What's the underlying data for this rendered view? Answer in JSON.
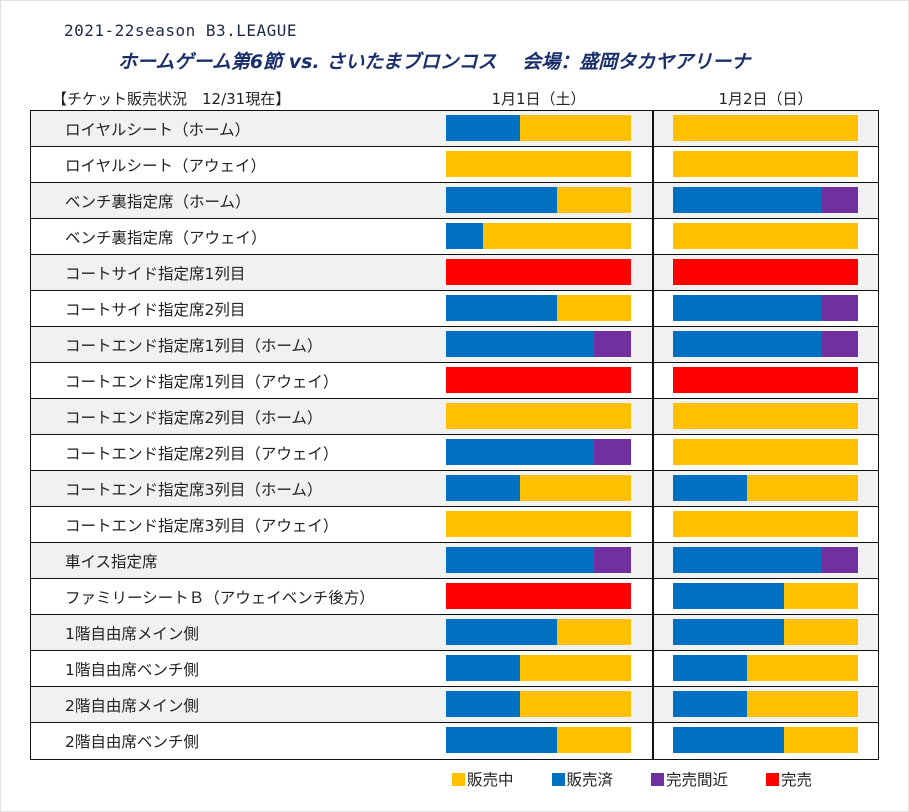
{
  "header": {
    "season": "2021-22season B3.LEAGUE",
    "title": "ホームゲーム第6節 vs. さいたまブロンコス　 会場：盛岡タカヤアリーナ",
    "status_heading": "【チケット販売状況　12/31現在】"
  },
  "chart_data": {
    "type": "table",
    "title": "チケット販売状況 12/31現在",
    "unit": "fraction of bar (0-1), stacked left to right",
    "days": [
      "1月1日（土）",
      "1月2日（日）"
    ],
    "status_colors": {
      "on_sale": "#FFC000",
      "sold": "#0070C0",
      "nearly_sold_out": "#7030A0",
      "sold_out": "#FF0000"
    },
    "legend": [
      {
        "key": "on_sale",
        "label": "販売中"
      },
      {
        "key": "sold",
        "label": "販売済"
      },
      {
        "key": "nearly_sold_out",
        "label": "完売間近"
      },
      {
        "key": "sold_out",
        "label": "完売"
      }
    ],
    "rows": [
      {
        "seat": "ロイヤルシート（ホーム）",
        "day1": [
          {
            "s": "sold",
            "v": 0.4
          },
          {
            "s": "on_sale",
            "v": 0.6
          }
        ],
        "day2": [
          {
            "s": "on_sale",
            "v": 1.0
          }
        ]
      },
      {
        "seat": "ロイヤルシート（アウェイ）",
        "day1": [
          {
            "s": "on_sale",
            "v": 1.0
          }
        ],
        "day2": [
          {
            "s": "on_sale",
            "v": 1.0
          }
        ]
      },
      {
        "seat": "ベンチ裏指定席（ホーム）",
        "day1": [
          {
            "s": "sold",
            "v": 0.6
          },
          {
            "s": "on_sale",
            "v": 0.4
          }
        ],
        "day2": [
          {
            "s": "sold",
            "v": 0.8
          },
          {
            "s": "nearly_sold_out",
            "v": 0.2
          }
        ]
      },
      {
        "seat": "ベンチ裏指定席（アウェイ）",
        "day1": [
          {
            "s": "sold",
            "v": 0.2
          },
          {
            "s": "on_sale",
            "v": 0.8
          }
        ],
        "day2": [
          {
            "s": "on_sale",
            "v": 1.0
          }
        ]
      },
      {
        "seat": "コートサイド指定席1列目",
        "day1": [
          {
            "s": "sold_out",
            "v": 1.0
          }
        ],
        "day2": [
          {
            "s": "sold_out",
            "v": 1.0
          }
        ]
      },
      {
        "seat": "コートサイド指定席2列目",
        "day1": [
          {
            "s": "sold",
            "v": 0.6
          },
          {
            "s": "on_sale",
            "v": 0.4
          }
        ],
        "day2": [
          {
            "s": "sold",
            "v": 0.8
          },
          {
            "s": "nearly_sold_out",
            "v": 0.2
          }
        ]
      },
      {
        "seat": "コートエンド指定席1列目（ホーム）",
        "day1": [
          {
            "s": "sold",
            "v": 0.8
          },
          {
            "s": "nearly_sold_out",
            "v": 0.2
          }
        ],
        "day2": [
          {
            "s": "sold",
            "v": 0.8
          },
          {
            "s": "nearly_sold_out",
            "v": 0.2
          }
        ]
      },
      {
        "seat": "コートエンド指定席1列目（アウェイ）",
        "day1": [
          {
            "s": "sold_out",
            "v": 1.0
          }
        ],
        "day2": [
          {
            "s": "sold_out",
            "v": 1.0
          }
        ]
      },
      {
        "seat": "コートエンド指定席2列目（ホーム）",
        "day1": [
          {
            "s": "on_sale",
            "v": 1.0
          }
        ],
        "day2": [
          {
            "s": "on_sale",
            "v": 1.0
          }
        ]
      },
      {
        "seat": "コートエンド指定席2列目（アウェイ）",
        "day1": [
          {
            "s": "sold",
            "v": 0.8
          },
          {
            "s": "nearly_sold_out",
            "v": 0.2
          }
        ],
        "day2": [
          {
            "s": "on_sale",
            "v": 1.0
          }
        ]
      },
      {
        "seat": "コートエンド指定席3列目（ホーム）",
        "day1": [
          {
            "s": "sold",
            "v": 0.4
          },
          {
            "s": "on_sale",
            "v": 0.6
          }
        ],
        "day2": [
          {
            "s": "sold",
            "v": 0.4
          },
          {
            "s": "on_sale",
            "v": 0.6
          }
        ]
      },
      {
        "seat": "コートエンド指定席3列目（アウェイ）",
        "day1": [
          {
            "s": "on_sale",
            "v": 1.0
          }
        ],
        "day2": [
          {
            "s": "on_sale",
            "v": 1.0
          }
        ]
      },
      {
        "seat": "車イス指定席",
        "day1": [
          {
            "s": "sold",
            "v": 0.8
          },
          {
            "s": "nearly_sold_out",
            "v": 0.2
          }
        ],
        "day2": [
          {
            "s": "sold",
            "v": 0.8
          },
          {
            "s": "nearly_sold_out",
            "v": 0.2
          }
        ]
      },
      {
        "seat": "ファミリーシートＢ（アウェイベンチ後方）",
        "day1": [
          {
            "s": "sold_out",
            "v": 1.0
          }
        ],
        "day2": [
          {
            "s": "sold",
            "v": 0.6
          },
          {
            "s": "on_sale",
            "v": 0.4
          }
        ]
      },
      {
        "seat": "1階自由席メイン側",
        "day1": [
          {
            "s": "sold",
            "v": 0.6
          },
          {
            "s": "on_sale",
            "v": 0.4
          }
        ],
        "day2": [
          {
            "s": "sold",
            "v": 0.6
          },
          {
            "s": "on_sale",
            "v": 0.4
          }
        ]
      },
      {
        "seat": "1階自由席ベンチ側",
        "day1": [
          {
            "s": "sold",
            "v": 0.4
          },
          {
            "s": "on_sale",
            "v": 0.6
          }
        ],
        "day2": [
          {
            "s": "sold",
            "v": 0.4
          },
          {
            "s": "on_sale",
            "v": 0.6
          }
        ]
      },
      {
        "seat": "2階自由席メイン側",
        "day1": [
          {
            "s": "sold",
            "v": 0.4
          },
          {
            "s": "on_sale",
            "v": 0.6
          }
        ],
        "day2": [
          {
            "s": "sold",
            "v": 0.4
          },
          {
            "s": "on_sale",
            "v": 0.6
          }
        ]
      },
      {
        "seat": "2階自由席ベンチ側",
        "day1": [
          {
            "s": "sold",
            "v": 0.6
          },
          {
            "s": "on_sale",
            "v": 0.4
          }
        ],
        "day2": [
          {
            "s": "sold",
            "v": 0.6
          },
          {
            "s": "on_sale",
            "v": 0.4
          }
        ]
      }
    ]
  }
}
